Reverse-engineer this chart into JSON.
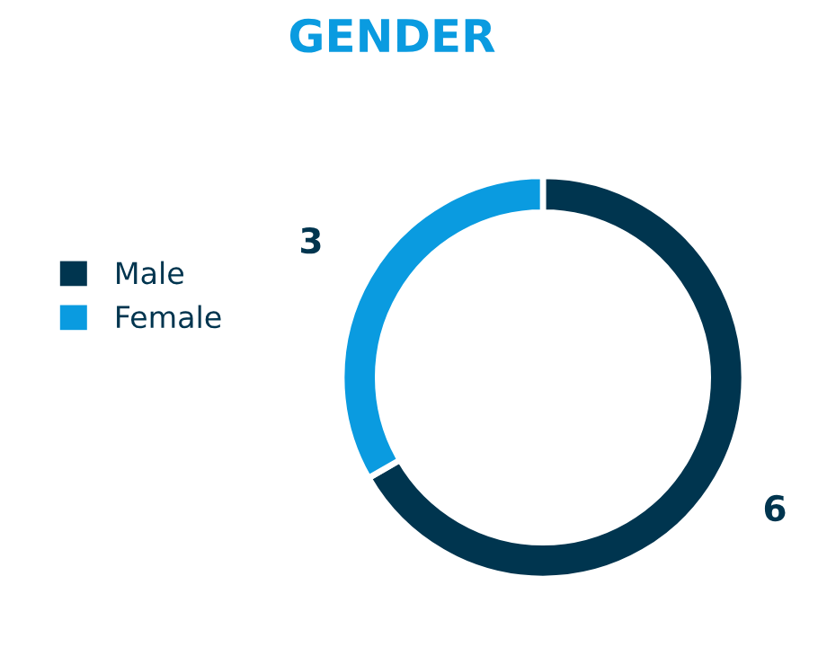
{
  "chart_data": {
    "type": "donut",
    "title": "GENDER",
    "categories": [
      "Male",
      "Female"
    ],
    "values": [
      6,
      3
    ],
    "colors": [
      "#00354f",
      "#0a9be0"
    ],
    "data_labels": true,
    "legend": "left"
  }
}
